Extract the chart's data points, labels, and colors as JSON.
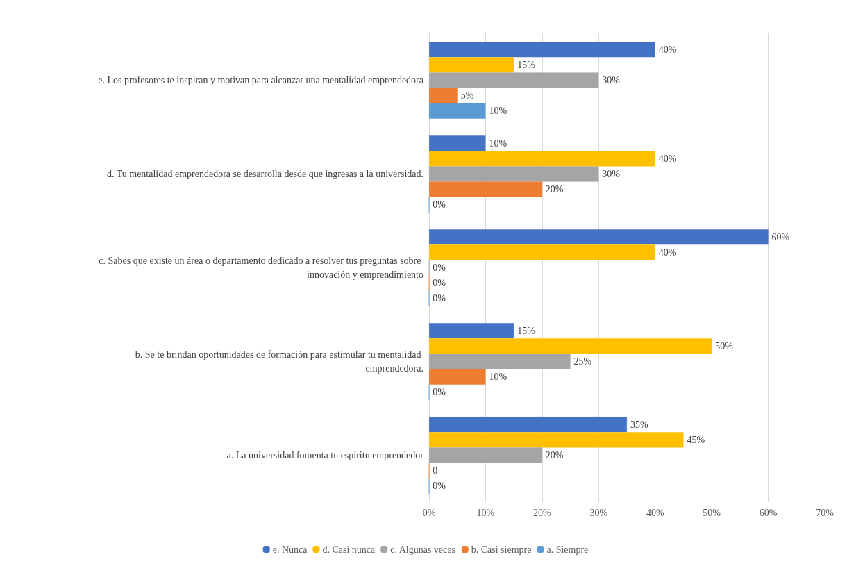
{
  "chart_data": {
    "type": "bar",
    "orientation": "horizontal",
    "categories": [
      "e. Los profesores te inspiran y motivan para alcanzar una mentalidad emprendedora",
      "d. Tu mentalidad emprendedora se desarrolla desde que ingresas a la universidad.",
      "c. Sabes que existe un área o departamento dedicado a resolver tus preguntas sobre innovación y emprendimiento",
      "b. Se te brindan oportunidades de formación para estimular tu mentalidad emprendedora.",
      "a. La universidad fomenta tu espiritu emprendedor"
    ],
    "series": [
      {
        "name": "e. Nunca",
        "color": "#4472c4",
        "values": [
          40,
          10,
          60,
          15,
          35
        ],
        "value_labels": [
          "40%",
          "10%",
          "60%",
          "15%",
          "35%"
        ]
      },
      {
        "name": "d. Casi nunca",
        "color": "#ffc000",
        "values": [
          15,
          40,
          40,
          50,
          45
        ],
        "value_labels": [
          "15%",
          "40%",
          "40%",
          "50%",
          "45%"
        ]
      },
      {
        "name": "c. Algunas veces",
        "color": "#a5a5a5",
        "values": [
          30,
          30,
          0,
          25,
          20
        ],
        "value_labels": [
          "30%",
          "30%",
          "0%",
          "25%",
          "20%"
        ]
      },
      {
        "name": "b. Casi siempre",
        "color": "#ed7d31",
        "values": [
          5,
          20,
          0,
          10,
          0
        ],
        "value_labels": [
          "5%",
          "20%",
          "0%",
          "10%",
          "0"
        ]
      },
      {
        "name": "a. Siempre",
        "color": "#5b9bd5",
        "values": [
          10,
          0,
          0,
          0,
          0
        ],
        "value_labels": [
          "10%",
          "0%",
          "0%",
          "0%",
          "0%"
        ]
      }
    ],
    "xlim": [
      0,
      70
    ],
    "xticks": [
      {
        "value": 0,
        "label": "0%"
      },
      {
        "value": 10,
        "label": "10%"
      },
      {
        "value": 20,
        "label": "20%"
      },
      {
        "value": 30,
        "label": "30%"
      },
      {
        "value": 40,
        "label": "40%"
      },
      {
        "value": 50,
        "label": "50%"
      },
      {
        "value": 60,
        "label": "60%"
      },
      {
        "value": 70,
        "label": "70%"
      }
    ],
    "grid": "x",
    "legend": "bottom"
  }
}
